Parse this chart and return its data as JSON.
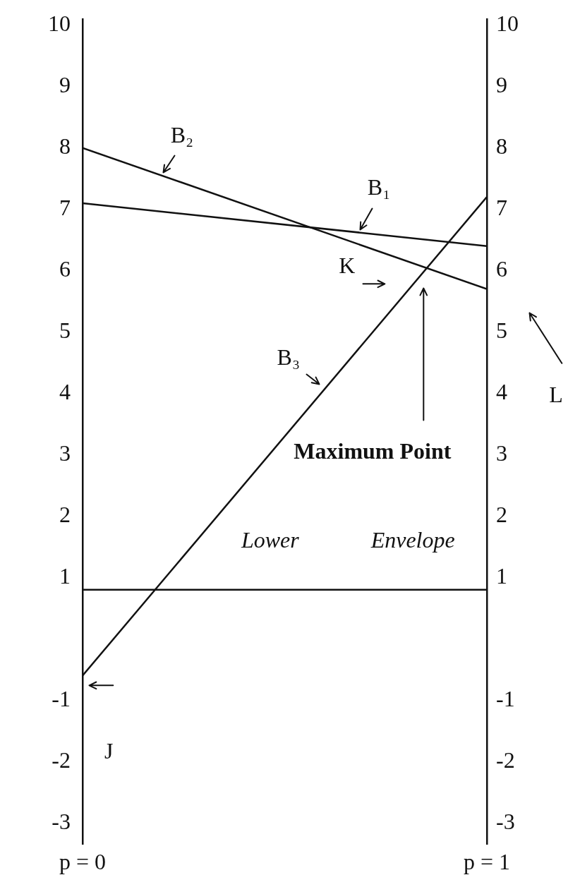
{
  "chart_data": {
    "type": "line",
    "x": [
      0,
      1
    ],
    "xlim": [
      0,
      1
    ],
    "xticks": [
      {
        "value": 0,
        "label": "p = 0"
      },
      {
        "value": 1,
        "label": "p = 1"
      }
    ],
    "series": [
      {
        "name": "B₁",
        "color": "#111111",
        "values": [
          7.1,
          6.4
        ]
      },
      {
        "name": "B₂",
        "color": "#111111",
        "values": [
          8,
          5.7
        ]
      },
      {
        "name": "B₃",
        "color": "#111111",
        "values": [
          -0.6,
          7.2
        ]
      },
      {
        "color": "#111111",
        "values": [
          0.8,
          0.8
        ]
      }
    ],
    "ylim": [
      -3.35,
      10.1
    ],
    "yticks": [
      -3,
      -2,
      -1,
      1,
      2,
      3,
      4,
      5,
      6,
      7,
      8,
      9,
      10
    ],
    "y2lim": [
      -3.35,
      10.1
    ],
    "y2ticks": [
      -3,
      -2,
      -1,
      1,
      2,
      3,
      4,
      5,
      6,
      7,
      8,
      9,
      10
    ],
    "marker": "none",
    "annotations": [
      "Maximum Point",
      "J",
      "K",
      "L",
      "Lower",
      "Envelope"
    ]
  }
}
